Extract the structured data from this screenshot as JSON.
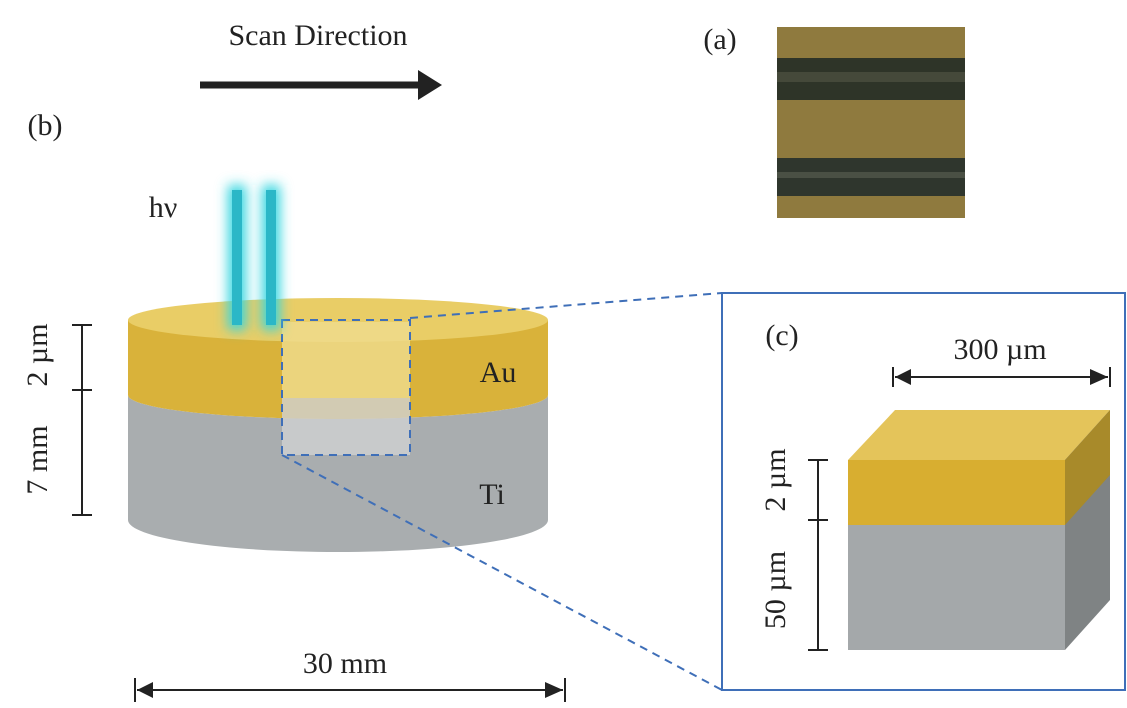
{
  "scan_direction": {
    "label": "Scan Direction"
  },
  "panel_a": {
    "label": "(a)"
  },
  "panel_b": {
    "label": "(b)",
    "beam": "hν",
    "layers": [
      "Au",
      "Ti"
    ],
    "dimensions": {
      "gold_thickness": "2 µm",
      "height": "7 mm",
      "diameter": "30 mm"
    }
  },
  "panel_c": {
    "label": "(c)",
    "dimensions": {
      "width": "300 µm",
      "gold_thickness": "2 µm",
      "height": "50 µm"
    }
  }
}
